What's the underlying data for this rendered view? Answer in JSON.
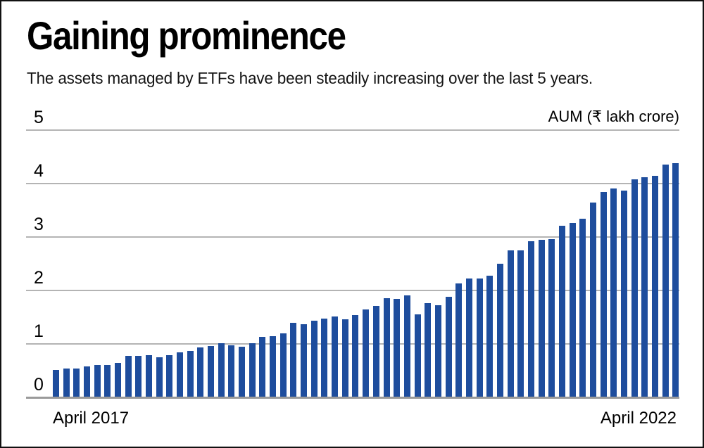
{
  "header": {
    "title": "Gaining prominence",
    "subtitle": "The assets managed by ETFs have been steadily increasing over the last 5 years."
  },
  "chart_data": {
    "type": "bar",
    "title": "Gaining prominence",
    "subtitle": "The assets managed by ETFs have been steadily increasing over the last 5 years.",
    "unit_label": "AUM (₹ lakh crore)",
    "ylabel": "AUM (₹ lakh crore)",
    "xlabel": "",
    "ylim": [
      0,
      5
    ],
    "y_ticks": [
      0,
      1,
      2,
      3,
      4,
      5
    ],
    "grid": true,
    "x_axis": {
      "start_label": "April 2017",
      "end_label": "April 2022"
    },
    "series_name": "ETF AUM (₹ lakh crore), monthly April 2017 – April 2022",
    "values": [
      0.5,
      0.53,
      0.53,
      0.57,
      0.59,
      0.6,
      0.64,
      0.76,
      0.77,
      0.78,
      0.74,
      0.78,
      0.83,
      0.86,
      0.93,
      0.95,
      1.0,
      0.96,
      0.94,
      1.0,
      1.12,
      1.13,
      1.19,
      1.39,
      1.36,
      1.43,
      1.46,
      1.5,
      1.45,
      1.53,
      1.64,
      1.7,
      1.85,
      1.83,
      1.9,
      1.55,
      1.76,
      1.72,
      1.88,
      2.13,
      2.22,
      2.21,
      2.27,
      2.5,
      2.74,
      2.75,
      2.92,
      2.94,
      2.96,
      3.2,
      3.26,
      3.34,
      3.64,
      3.84,
      3.91,
      3.86,
      4.08,
      4.12,
      4.14,
      4.35,
      4.38
    ],
    "colors": {
      "bar": "#1e4d9d",
      "gridline": "#b4b4b4",
      "baseline": "#9a9a9a",
      "text": "#000000"
    }
  }
}
